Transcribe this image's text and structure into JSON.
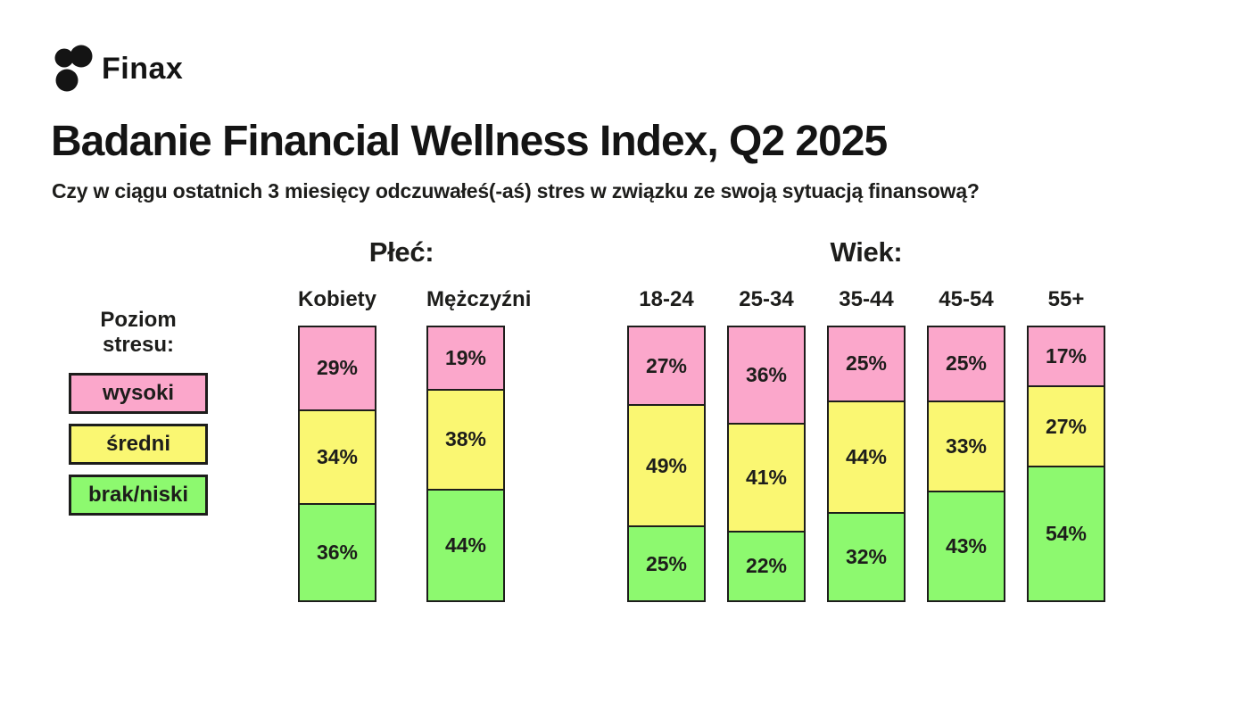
{
  "brand": {
    "name": "Finax"
  },
  "header": {
    "title": "Badanie Financial Wellness Index, Q2 2025",
    "subtitle": "Czy w ciągu ostatnich 3 miesięcy odczuwałeś(-aś) stres w związku ze swoją sytuacją finansową?"
  },
  "legend": {
    "title": "Poziom stresu:",
    "items": [
      {
        "key": "wysoki",
        "label": "wysoki",
        "color": "#FBA7CB"
      },
      {
        "key": "sredni",
        "label": "średni",
        "color": "#FAF772"
      },
      {
        "key": "brak-niski",
        "label": "brak/niski",
        "color": "#8DF96F"
      }
    ]
  },
  "colors": {
    "high": "#FBA7CB",
    "medium": "#FAF772",
    "low": "#8DF96F",
    "border": "#1d1d1b",
    "background": "#ffffff"
  },
  "chart_data": [
    {
      "type": "bar",
      "stacked": true,
      "title": "Płeć:",
      "categories": [
        "Kobiety",
        "Mężczyźni"
      ],
      "series": [
        {
          "name": "wysoki",
          "color": "#FBA7CB",
          "values": [
            29,
            19
          ]
        },
        {
          "name": "średni",
          "color": "#FAF772",
          "values": [
            34,
            38
          ]
        },
        {
          "name": "brak/niski",
          "color": "#8DF96F",
          "values": [
            36,
            44
          ]
        }
      ],
      "value_suffix": "%",
      "legend_position": "left",
      "grid": false
    },
    {
      "type": "bar",
      "stacked": true,
      "title": "Wiek:",
      "categories": [
        "18-24",
        "25-34",
        "35-44",
        "45-54",
        "55+"
      ],
      "series": [
        {
          "name": "wysoki",
          "color": "#FBA7CB",
          "values": [
            27,
            36,
            25,
            25,
            17
          ]
        },
        {
          "name": "średni",
          "color": "#FAF772",
          "values": [
            49,
            41,
            44,
            33,
            27
          ]
        },
        {
          "name": "brak/niski",
          "color": "#8DF96F",
          "values": [
            25,
            22,
            32,
            43,
            54
          ]
        }
      ],
      "value_suffix": "%",
      "legend_position": "left",
      "grid": false
    }
  ]
}
